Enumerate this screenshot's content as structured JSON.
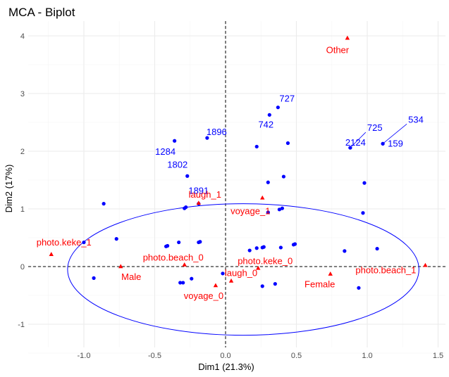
{
  "chart_data": {
    "type": "scatter",
    "title": "MCA - Biplot",
    "xlabel": "Dim1 (21.3%)",
    "ylabel": "Dim2 (17%)",
    "xlim": [
      -1.35,
      1.55
    ],
    "ylim": [
      -1.4,
      4.25
    ],
    "xticks": [
      "-1.0",
      "-0.5",
      "0.0",
      "0.5",
      "1.0",
      "1.5"
    ],
    "yticks": [
      "-1",
      "0",
      "1",
      "2",
      "3",
      "4"
    ],
    "grid": true,
    "colors": {
      "individuals": "#0000ff",
      "variables": "#ff0000",
      "ellipse": "#0000ff",
      "grid_major": "#ebebeb",
      "grid_minor": "#f5f5f5"
    },
    "individuals": [
      {
        "x": 0.37,
        "y": 2.76,
        "label": "727"
      },
      {
        "x": 0.31,
        "y": 2.63,
        "label": "742"
      },
      {
        "x": 0.88,
        "y": 2.06,
        "label": "725"
      },
      {
        "x": 1.11,
        "y": 2.13,
        "label": "534"
      },
      {
        "x": 0.88,
        "y": 2.06,
        "label": "2124"
      },
      {
        "x": 1.11,
        "y": 2.13,
        "label": "159"
      },
      {
        "x": -0.13,
        "y": 2.23,
        "label": "1896"
      },
      {
        "x": -0.36,
        "y": 2.18,
        "label": "1284"
      },
      {
        "x": -0.27,
        "y": 1.57,
        "label": "1802"
      },
      {
        "x": -0.19,
        "y": 1.09,
        "label": "1891"
      },
      {
        "x": 0.22,
        "y": 2.08,
        "label": ""
      },
      {
        "x": 0.44,
        "y": 2.14,
        "label": ""
      },
      {
        "x": 0.3,
        "y": 1.46,
        "label": ""
      },
      {
        "x": 0.41,
        "y": 1.56,
        "label": ""
      },
      {
        "x": 0.98,
        "y": 1.45,
        "label": ""
      },
      {
        "x": 0.97,
        "y": 0.93,
        "label": ""
      },
      {
        "x": -0.86,
        "y": 1.09,
        "label": ""
      },
      {
        "x": -0.29,
        "y": 1.01,
        "label": ""
      },
      {
        "x": -0.28,
        "y": 1.03,
        "label": ""
      },
      {
        "x": 0.3,
        "y": 0.94,
        "label": ""
      },
      {
        "x": 0.38,
        "y": 0.99,
        "label": ""
      },
      {
        "x": 0.4,
        "y": 1.01,
        "label": ""
      },
      {
        "x": -0.77,
        "y": 0.48,
        "label": ""
      },
      {
        "x": -1.0,
        "y": 0.42,
        "label": ""
      },
      {
        "x": -0.42,
        "y": 0.35,
        "label": ""
      },
      {
        "x": -0.41,
        "y": 0.36,
        "label": ""
      },
      {
        "x": -0.33,
        "y": 0.42,
        "label": ""
      },
      {
        "x": -0.19,
        "y": 0.42,
        "label": ""
      },
      {
        "x": -0.18,
        "y": 0.43,
        "label": ""
      },
      {
        "x": 0.17,
        "y": 0.28,
        "label": ""
      },
      {
        "x": 0.22,
        "y": 0.32,
        "label": ""
      },
      {
        "x": 0.26,
        "y": 0.33,
        "label": ""
      },
      {
        "x": 0.27,
        "y": 0.34,
        "label": ""
      },
      {
        "x": 0.39,
        "y": 0.33,
        "label": ""
      },
      {
        "x": 0.48,
        "y": 0.38,
        "label": ""
      },
      {
        "x": 0.49,
        "y": 0.39,
        "label": ""
      },
      {
        "x": 0.84,
        "y": 0.27,
        "label": ""
      },
      {
        "x": 1.07,
        "y": 0.31,
        "label": ""
      },
      {
        "x": -0.93,
        "y": -0.2,
        "label": ""
      },
      {
        "x": -0.3,
        "y": -0.28,
        "label": ""
      },
      {
        "x": -0.32,
        "y": -0.28,
        "label": ""
      },
      {
        "x": -0.24,
        "y": -0.21,
        "label": ""
      },
      {
        "x": -0.02,
        "y": -0.12,
        "label": ""
      },
      {
        "x": 0.26,
        "y": -0.34,
        "label": ""
      },
      {
        "x": 0.35,
        "y": -0.3,
        "label": ""
      },
      {
        "x": 0.94,
        "y": -0.37,
        "label": ""
      }
    ],
    "variables": [
      {
        "x": 0.86,
        "y": 3.96,
        "label": "Other"
      },
      {
        "x": 0.26,
        "y": 1.19,
        "label": "voyage_1"
      },
      {
        "x": -0.19,
        "y": 1.1,
        "label": "laugh_1"
      },
      {
        "x": -1.23,
        "y": 0.21,
        "label": "photo.keke_1"
      },
      {
        "x": -0.74,
        "y": 0.0,
        "label": "Male"
      },
      {
        "x": -0.29,
        "y": 0.03,
        "label": "photo.beach_0"
      },
      {
        "x": 0.23,
        "y": -0.03,
        "label": "photo.keke_0"
      },
      {
        "x": 0.04,
        "y": -0.25,
        "label": "laugh_0"
      },
      {
        "x": -0.07,
        "y": -0.33,
        "label": "voyage_0"
      },
      {
        "x": 0.74,
        "y": -0.13,
        "label": "Female"
      },
      {
        "x": 1.41,
        "y": 0.02,
        "label": "photo.beach_1"
      }
    ],
    "ellipse": {
      "cx": 0.125,
      "cy": -0.05,
      "rx": 1.24,
      "ry": 1.14
    }
  }
}
